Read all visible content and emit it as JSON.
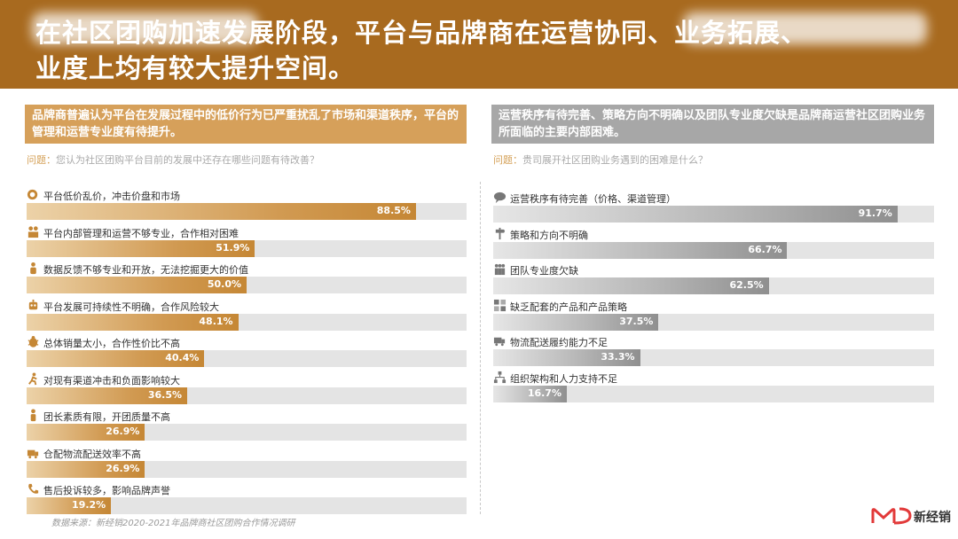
{
  "header": {
    "title_line1": "在社区团购加速发展阶段，平台与品牌商在运营协同、业务拓展、",
    "title_line2": "业度上均有较大提升空间。"
  },
  "left": {
    "banner": "品牌商普遍认为平台在发展过程中的低价行为已严重扰乱了市场和渠道秩序，平台的管理和运营专业度有待提升。",
    "question_label": "问题：",
    "question": "您认为社区团购平台目前的发展中还存在哪些问题有待改善？",
    "accent": "#d6a05a"
  },
  "right": {
    "banner": "运营秩序有待完善、策略方向不明确以及团队专业度欠缺是品牌商运营社区团购业务所面临的主要内部困难。",
    "question_label": "问题：",
    "question": "贵司展开社区团购业务遇到的困难是什么？",
    "accent": "#a7a7a7"
  },
  "chart_data": [
    {
      "type": "bar",
      "orientation": "horizontal",
      "categories": [
        "平台低价乱价，冲击价盘和市场",
        "平台内部管理和运营不够专业，合作相对困难",
        "数据反馈不够专业和开放，无法挖掘更大的价值",
        "平台发展可持续性不明确，合作风险较大",
        "总体销量太小，合作性价比不高",
        "对现有渠道冲击和负面影响较大",
        "团长素质有限，开团质量不高",
        "仓配物流配送效率不高",
        "售后投诉较多，影响品牌声誉"
      ],
      "values": [
        88.5,
        51.9,
        50.0,
        48.1,
        40.4,
        36.5,
        26.9,
        26.9,
        19.2
      ],
      "labels": [
        "88.5%",
        "51.9%",
        "50.0%",
        "48.1%",
        "40.4%",
        "36.5%",
        "26.9%",
        "26.9%",
        "19.2%"
      ],
      "icons": [
        "coins-icon",
        "people-icon",
        "data-icon",
        "robot-icon",
        "bug-icon",
        "runner-icon",
        "person-icon",
        "delivery-icon",
        "phone-icon"
      ],
      "xlim": [
        0,
        100
      ],
      "color": "#c58735"
    },
    {
      "type": "bar",
      "orientation": "horizontal",
      "categories": [
        "运营秩序有待完善（价格、渠道管理）",
        "策略和方向不明确",
        "团队专业度欠缺",
        "缺乏配套的产品和产品策略",
        "物流配送履约能力不足",
        "组织架构和人力支持不足"
      ],
      "values": [
        91.7,
        66.7,
        62.5,
        37.5,
        33.3,
        16.7
      ],
      "labels": [
        "91.7%",
        "66.7%",
        "62.5%",
        "37.5%",
        "33.3%",
        "16.7%"
      ],
      "icons": [
        "speech-cloud-icon",
        "signpost-icon",
        "team-icon",
        "grid-icon",
        "truck-icon",
        "org-chart-icon"
      ],
      "xlim": [
        0,
        100
      ],
      "color": "#8f8f8f"
    }
  ],
  "footer": {
    "source": "数据来源：新经销2020-2021年品牌商社区团购合作情况调研",
    "brand": "新经销",
    "brand_color": "#e23a3a"
  }
}
